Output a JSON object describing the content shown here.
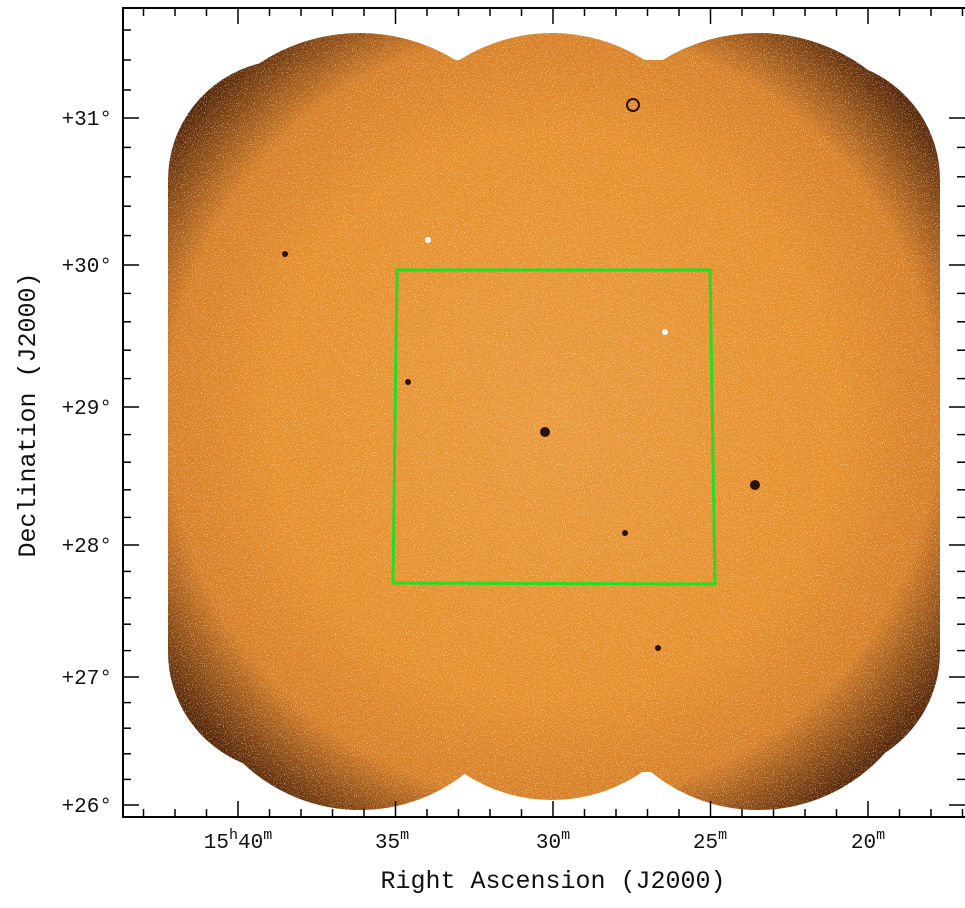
{
  "x_axis": {
    "label": "Right Ascension (J2000)",
    "ticks": [
      [
        "15",
        "h",
        "40",
        "m"
      ],
      [
        "35",
        "m"
      ],
      [
        "30",
        "m"
      ],
      [
        "25",
        "m"
      ],
      [
        "20",
        "m"
      ]
    ]
  },
  "y_axis": {
    "label": "Declination (J2000)",
    "ticks": [
      "+31°",
      "+30°",
      "+29°",
      "+28°",
      "+27°",
      "+26°"
    ]
  }
}
